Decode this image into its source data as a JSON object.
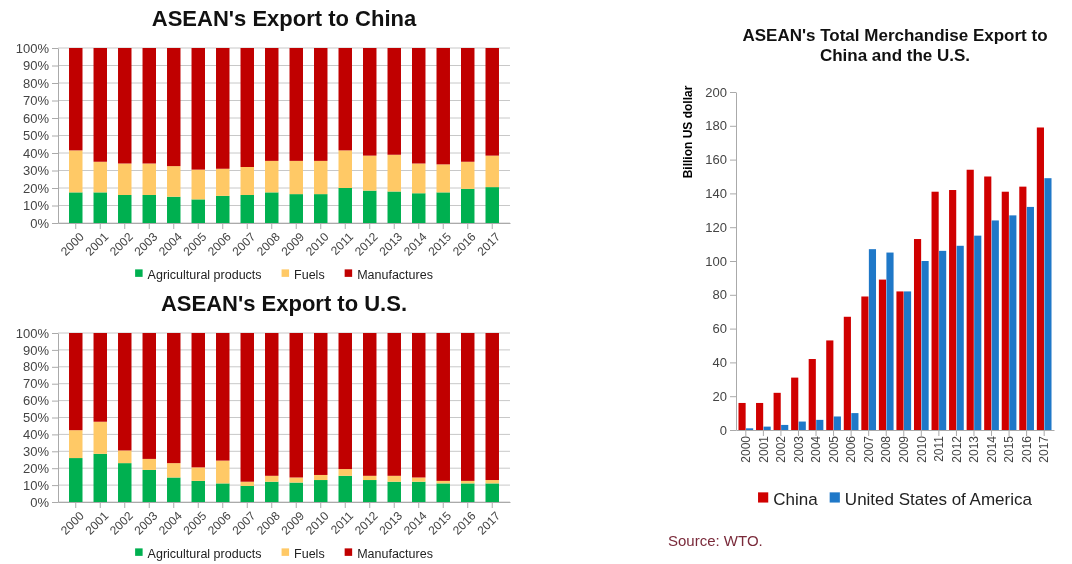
{
  "chart_data": [
    {
      "type": "bar",
      "title": "ASEAN's Export to China",
      "stacked": true,
      "grid": "y",
      "legend": "bottom",
      "categories": [
        "2000",
        "2001",
        "2002",
        "2003",
        "2004",
        "2005",
        "2006",
        "2007",
        "2008",
        "2009",
        "2010",
        "2011",
        "2012",
        "2013",
        "2014",
        "2015",
        "2016",
        "2017"
      ],
      "ylim": [
        0,
        100
      ],
      "yticks": [
        {
          "value": 0,
          "label": "0%"
        },
        {
          "value": 10,
          "label": "10%"
        },
        {
          "value": 20,
          "label": "20%"
        },
        {
          "value": 30,
          "label": "30%"
        },
        {
          "value": 40,
          "label": "40%"
        },
        {
          "value": 50,
          "label": "50%"
        },
        {
          "value": 60,
          "label": "60%"
        },
        {
          "value": 70,
          "label": "70%"
        },
        {
          "value": 80,
          "label": "80%"
        },
        {
          "value": 90,
          "label": "90%"
        },
        {
          "value": 100,
          "label": "100%"
        }
      ],
      "series": [
        {
          "name": "Agricultural products",
          "color": "#00b050",
          "values": [
            17.5,
            17.5,
            16,
            16,
            15,
            13.5,
            15.5,
            16,
            17.5,
            16.5,
            16.5,
            20,
            18.5,
            18,
            17,
            17.5,
            19.5,
            20.5
          ]
        },
        {
          "name": "Fuels",
          "color": "#ffc966",
          "values": [
            24,
            17.5,
            18,
            18,
            17.5,
            17,
            15.5,
            16,
            18,
            19,
            19,
            21.5,
            20,
            21,
            17,
            16,
            15.5,
            18
          ]
        },
        {
          "name": "Manufactures",
          "color": "#c00000",
          "values": [
            58.5,
            65,
            66,
            66,
            67.5,
            69.5,
            69,
            68,
            64.5,
            64.5,
            64.5,
            58.5,
            61.5,
            61,
            66,
            66.5,
            65,
            61.5
          ]
        }
      ]
    },
    {
      "type": "bar",
      "title": "ASEAN's Export to U.S.",
      "stacked": true,
      "grid": "y",
      "legend": "bottom",
      "categories": [
        "2000",
        "2001",
        "2002",
        "2003",
        "2004",
        "2005",
        "2006",
        "2007",
        "2008",
        "2009",
        "2010",
        "2011",
        "2012",
        "2013",
        "2014",
        "2015",
        "2016",
        "2017"
      ],
      "ylim": [
        0,
        100
      ],
      "yticks": [
        {
          "value": 0,
          "label": "0%"
        },
        {
          "value": 10,
          "label": "10%"
        },
        {
          "value": 20,
          "label": "20%"
        },
        {
          "value": 30,
          "label": "30%"
        },
        {
          "value": 40,
          "label": "40%"
        },
        {
          "value": 50,
          "label": "50%"
        },
        {
          "value": 60,
          "label": "60%"
        },
        {
          "value": 70,
          "label": "70%"
        },
        {
          "value": 80,
          "label": "80%"
        },
        {
          "value": 90,
          "label": "90%"
        },
        {
          "value": 100,
          "label": "100%"
        }
      ],
      "series": [
        {
          "name": "Agricultural products",
          "color": "#00b050",
          "values": [
            26,
            28.5,
            23,
            19,
            14.5,
            12.5,
            11,
            9.5,
            12,
            11.5,
            13,
            15.5,
            13,
            12,
            12,
            11,
            11,
            11
          ]
        },
        {
          "name": "Fuels",
          "color": "#ffc966",
          "values": [
            16.5,
            19,
            7.5,
            6.5,
            8.5,
            8,
            13.5,
            2.5,
            3.5,
            3,
            3,
            4,
            2.5,
            3.5,
            2.5,
            1.5,
            1.5,
            2
          ]
        },
        {
          "name": "Manufactures",
          "color": "#c00000",
          "values": [
            57.5,
            52.5,
            69.5,
            74.5,
            77,
            79.5,
            75.5,
            88,
            84.5,
            85.5,
            84,
            80.5,
            84.5,
            84.5,
            85.5,
            87.5,
            87.5,
            87
          ]
        }
      ]
    },
    {
      "type": "bar",
      "title": "ASEAN's Total Merchandise Export to China and the U.S.",
      "ylabel": "Billion US dollar",
      "legend": "bottom",
      "categories": [
        "2000",
        "2001",
        "2002",
        "2003",
        "2004",
        "2005",
        "2006",
        "2007",
        "2008",
        "2009",
        "2010",
        "2011",
        "2012",
        "2013",
        "2014",
        "2015",
        "2016",
        "2017"
      ],
      "ylim": [
        0,
        200
      ],
      "yticks": [
        0,
        20,
        40,
        60,
        80,
        100,
        120,
        140,
        160,
        180,
        200
      ],
      "series": [
        {
          "name": "China",
          "color": "#d00000",
          "values": [
            16,
            16,
            22,
            31,
            42,
            53,
            67,
            79,
            89,
            82,
            113,
            141,
            142,
            154,
            150,
            141,
            144,
            179
          ]
        },
        {
          "name": "United States of America",
          "color": "#1f78c8",
          "values": [
            1,
            2,
            3,
            5,
            6,
            8,
            10,
            107,
            105,
            82,
            100,
            106,
            109,
            115,
            124,
            127,
            132,
            149
          ]
        }
      ],
      "annotations": [
        "Source: WTO."
      ]
    }
  ]
}
